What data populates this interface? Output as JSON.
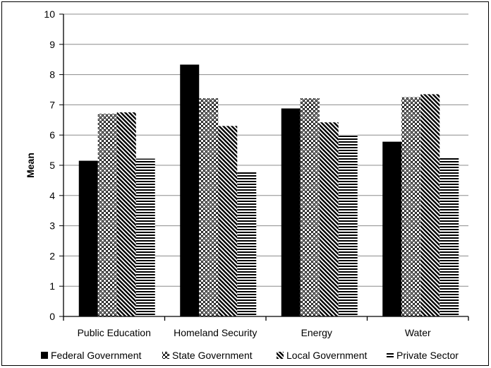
{
  "chart_data": {
    "type": "bar",
    "title": "",
    "xlabel": "",
    "ylabel": "Mean",
    "ylim": [
      0,
      10
    ],
    "yticks": [
      0,
      1,
      2,
      3,
      4,
      5,
      6,
      7,
      8,
      9,
      10
    ],
    "categories": [
      "Public Education",
      "Homeland Security",
      "Energy",
      "Water"
    ],
    "grid": "horizontal major gridlines",
    "legend_position": "bottom",
    "series": [
      {
        "name": "Federal Government",
        "fill": "solid",
        "color": "#000000",
        "values": [
          5.15,
          8.33,
          6.88,
          5.78
        ]
      },
      {
        "name": "State Government",
        "fill": "crosshatch",
        "color": "#000000",
        "values": [
          6.7,
          7.22,
          7.22,
          7.25
        ]
      },
      {
        "name": "Local Government",
        "fill": "diagonal",
        "color": "#000000",
        "values": [
          6.75,
          6.3,
          6.42,
          7.35
        ]
      },
      {
        "name": "Private Sector",
        "fill": "horizontal-lines",
        "color": "#000000",
        "values": [
          5.22,
          4.8,
          6.0,
          5.28
        ]
      }
    ]
  }
}
